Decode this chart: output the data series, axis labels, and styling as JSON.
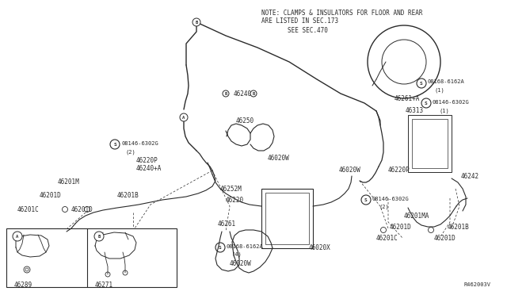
{
  "bg_color": "#ffffff",
  "line_color": "#2a2a2a",
  "text_color": "#2a2a2a",
  "note1": "NOTE: CLAMPS & INSULATORS FOR FLOOR AND REAR",
  "note2": "ARE LISTED IN SEC.173",
  "see": "SEE SEC.470",
  "ref": "R462003V"
}
